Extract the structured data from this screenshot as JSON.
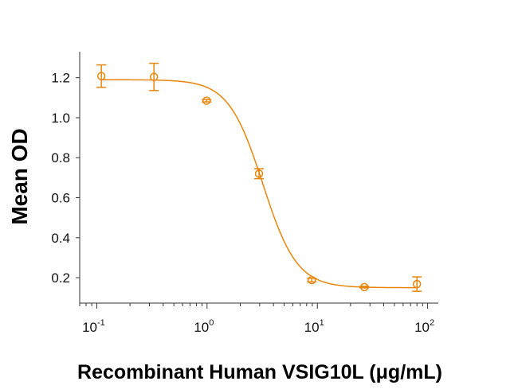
{
  "chart_data": {
    "type": "scatter",
    "title": "",
    "xlabel": "Recombinant Human VSIG10L (μg/mL)",
    "ylabel": "Mean OD",
    "x_scale": "log",
    "xlim": [
      0.07,
      125
    ],
    "ylim": [
      0.073,
      1.33
    ],
    "grid": false,
    "color": "#E8860C",
    "x_ticks": [
      {
        "value": 0.1,
        "base": "10",
        "exp": "-1"
      },
      {
        "value": 1,
        "base": "10",
        "exp": "0"
      },
      {
        "value": 10,
        "base": "10",
        "exp": "1"
      },
      {
        "value": 100,
        "base": "10",
        "exp": "2"
      }
    ],
    "y_ticks": [
      "0.2",
      "0.4",
      "0.6",
      "0.8",
      "1.0",
      "1.2"
    ],
    "series": [
      {
        "marker": "open-circle",
        "points": [
          {
            "x": 0.11,
            "y": 1.208,
            "err": 0.056
          },
          {
            "x": 0.33,
            "y": 1.204,
            "err": 0.068
          },
          {
            "x": 0.99,
            "y": 1.085,
            "err": 0.006
          },
          {
            "x": 2.96,
            "y": 0.72,
            "err": 0.025
          },
          {
            "x": 8.9,
            "y": 0.188,
            "err": 0.009
          },
          {
            "x": 26.7,
            "y": 0.153,
            "err": 0.004
          },
          {
            "x": 80,
            "y": 0.168,
            "err": 0.036
          }
        ],
        "fit": {
          "model": "4PL",
          "top": 1.19,
          "bottom": 0.15,
          "ec50": 3.2,
          "hill": 2.8
        }
      }
    ]
  }
}
